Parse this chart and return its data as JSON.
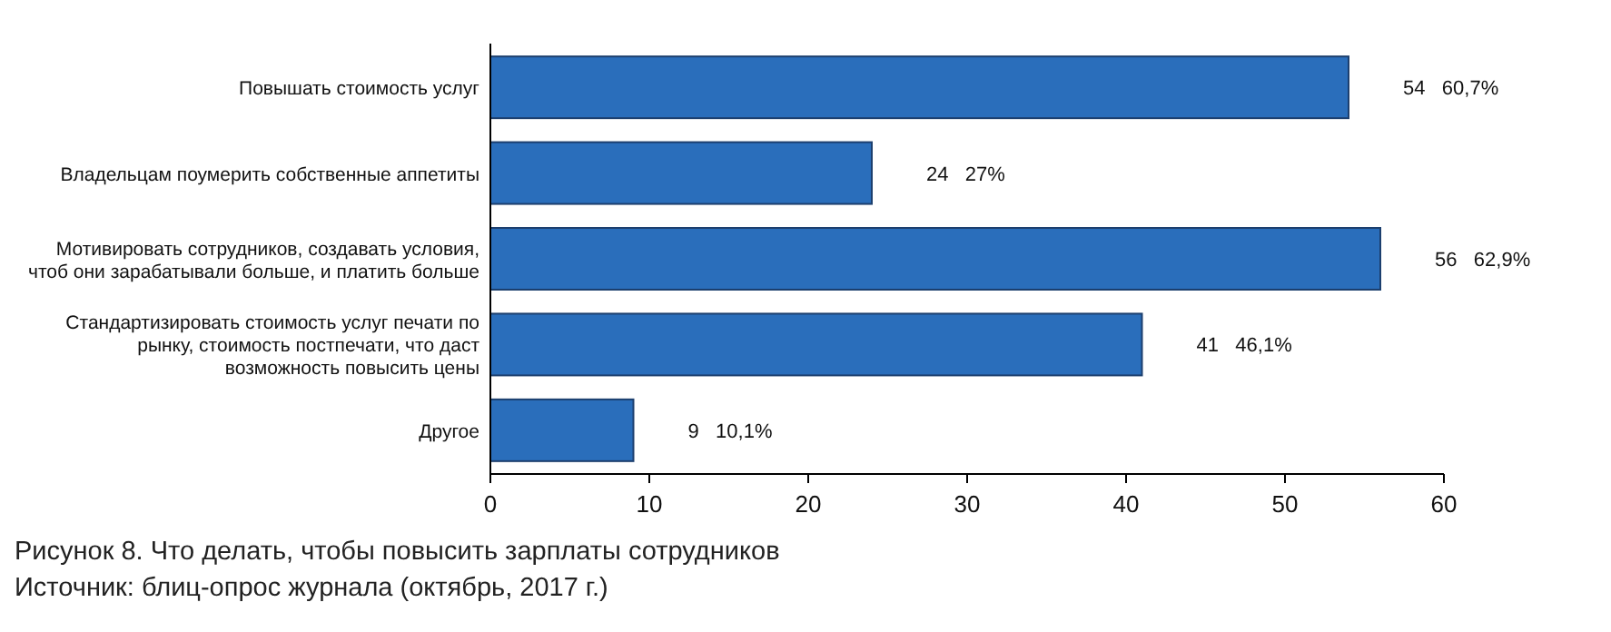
{
  "chart_data": {
    "type": "bar",
    "orientation": "horizontal",
    "categories": [
      "Повышать стоимость услуг",
      "Владельцам поумерить собственные аппетиты",
      "Мотивировать сотрудников, создавать условия, чтоб они зарабатывали больше, и платить больше",
      "Стандартизировать стоимость услуг печати по рынку, стоимость постпечати, что даст возможность повысить цены",
      "Другое"
    ],
    "values": [
      54,
      24,
      56,
      41,
      9
    ],
    "value_labels": [
      "54   60,7%",
      "24   27%",
      "56   62,9%",
      "41   46,1%",
      "9   10,1%"
    ],
    "color": "#2a6ebb",
    "xlim": [
      0,
      60
    ],
    "xticks": [
      0,
      10,
      20,
      30,
      40,
      50,
      60
    ],
    "grid": false,
    "annotations": [
      "Рисунок 8. Что делать, чтобы повысить зарплаты сотрудников",
      "Источник: блиц-опрос журнала (октябрь, 2017 г.)"
    ]
  }
}
